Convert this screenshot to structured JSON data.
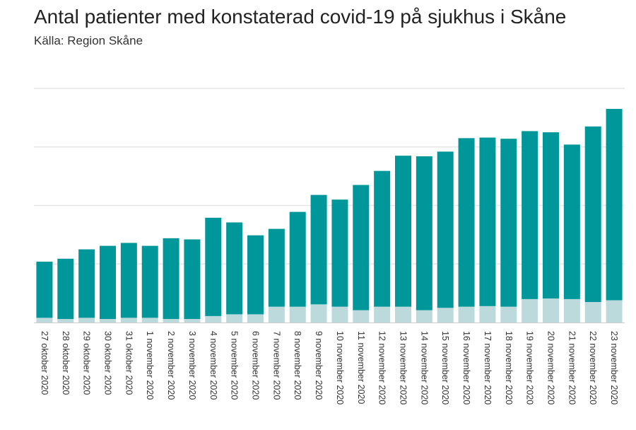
{
  "header": {
    "title": "Antal patienter med konstaterad covid-19 på sjukhus i Skåne",
    "subtitle": "Källa: Region Skåne"
  },
  "colors": {
    "primary": "#00979a",
    "secondary": "#bcd9dc",
    "grid": "#e6e6e6",
    "axis": "#cccccc"
  },
  "chart_data": {
    "type": "bar",
    "stacked": true,
    "grid": true,
    "ylim": [
      0,
      400
    ],
    "categories": [
      "27 oktober 2020",
      "28 oktober 2020",
      "29 oktober 2020",
      "30 oktober 2020",
      "31 oktober 2020",
      "1 november 2020",
      "2 november 2020",
      "3 november 2020",
      "4 november 2020",
      "5 november 2020",
      "6 november 2020",
      "7 november 2020",
      "8 november 2020",
      "9 november 2020",
      "10 november 2020",
      "11 november 2020",
      "12 november 2020",
      "13 november 2020",
      "14 november 2020",
      "15 november 2020",
      "16 november 2020",
      "17 november 2020",
      "18 november 2020",
      "19 november 2020",
      "20 november 2020",
      "21 november 2020",
      "22 november 2020",
      "23 november 2020"
    ],
    "series": [
      {
        "values": [
          8,
          6,
          8,
          6,
          8,
          8,
          6,
          6,
          11,
          14,
          14,
          27,
          27,
          31,
          27,
          21,
          27,
          27,
          21,
          25,
          27,
          28,
          27,
          40,
          41,
          40,
          35,
          38
        ]
      },
      {
        "values": [
          96,
          103,
          117,
          125,
          128,
          123,
          138,
          136,
          168,
          157,
          135,
          133,
          162,
          187,
          183,
          214,
          232,
          258,
          263,
          267,
          288,
          288,
          287,
          287,
          284,
          264,
          300,
          327
        ]
      }
    ]
  }
}
